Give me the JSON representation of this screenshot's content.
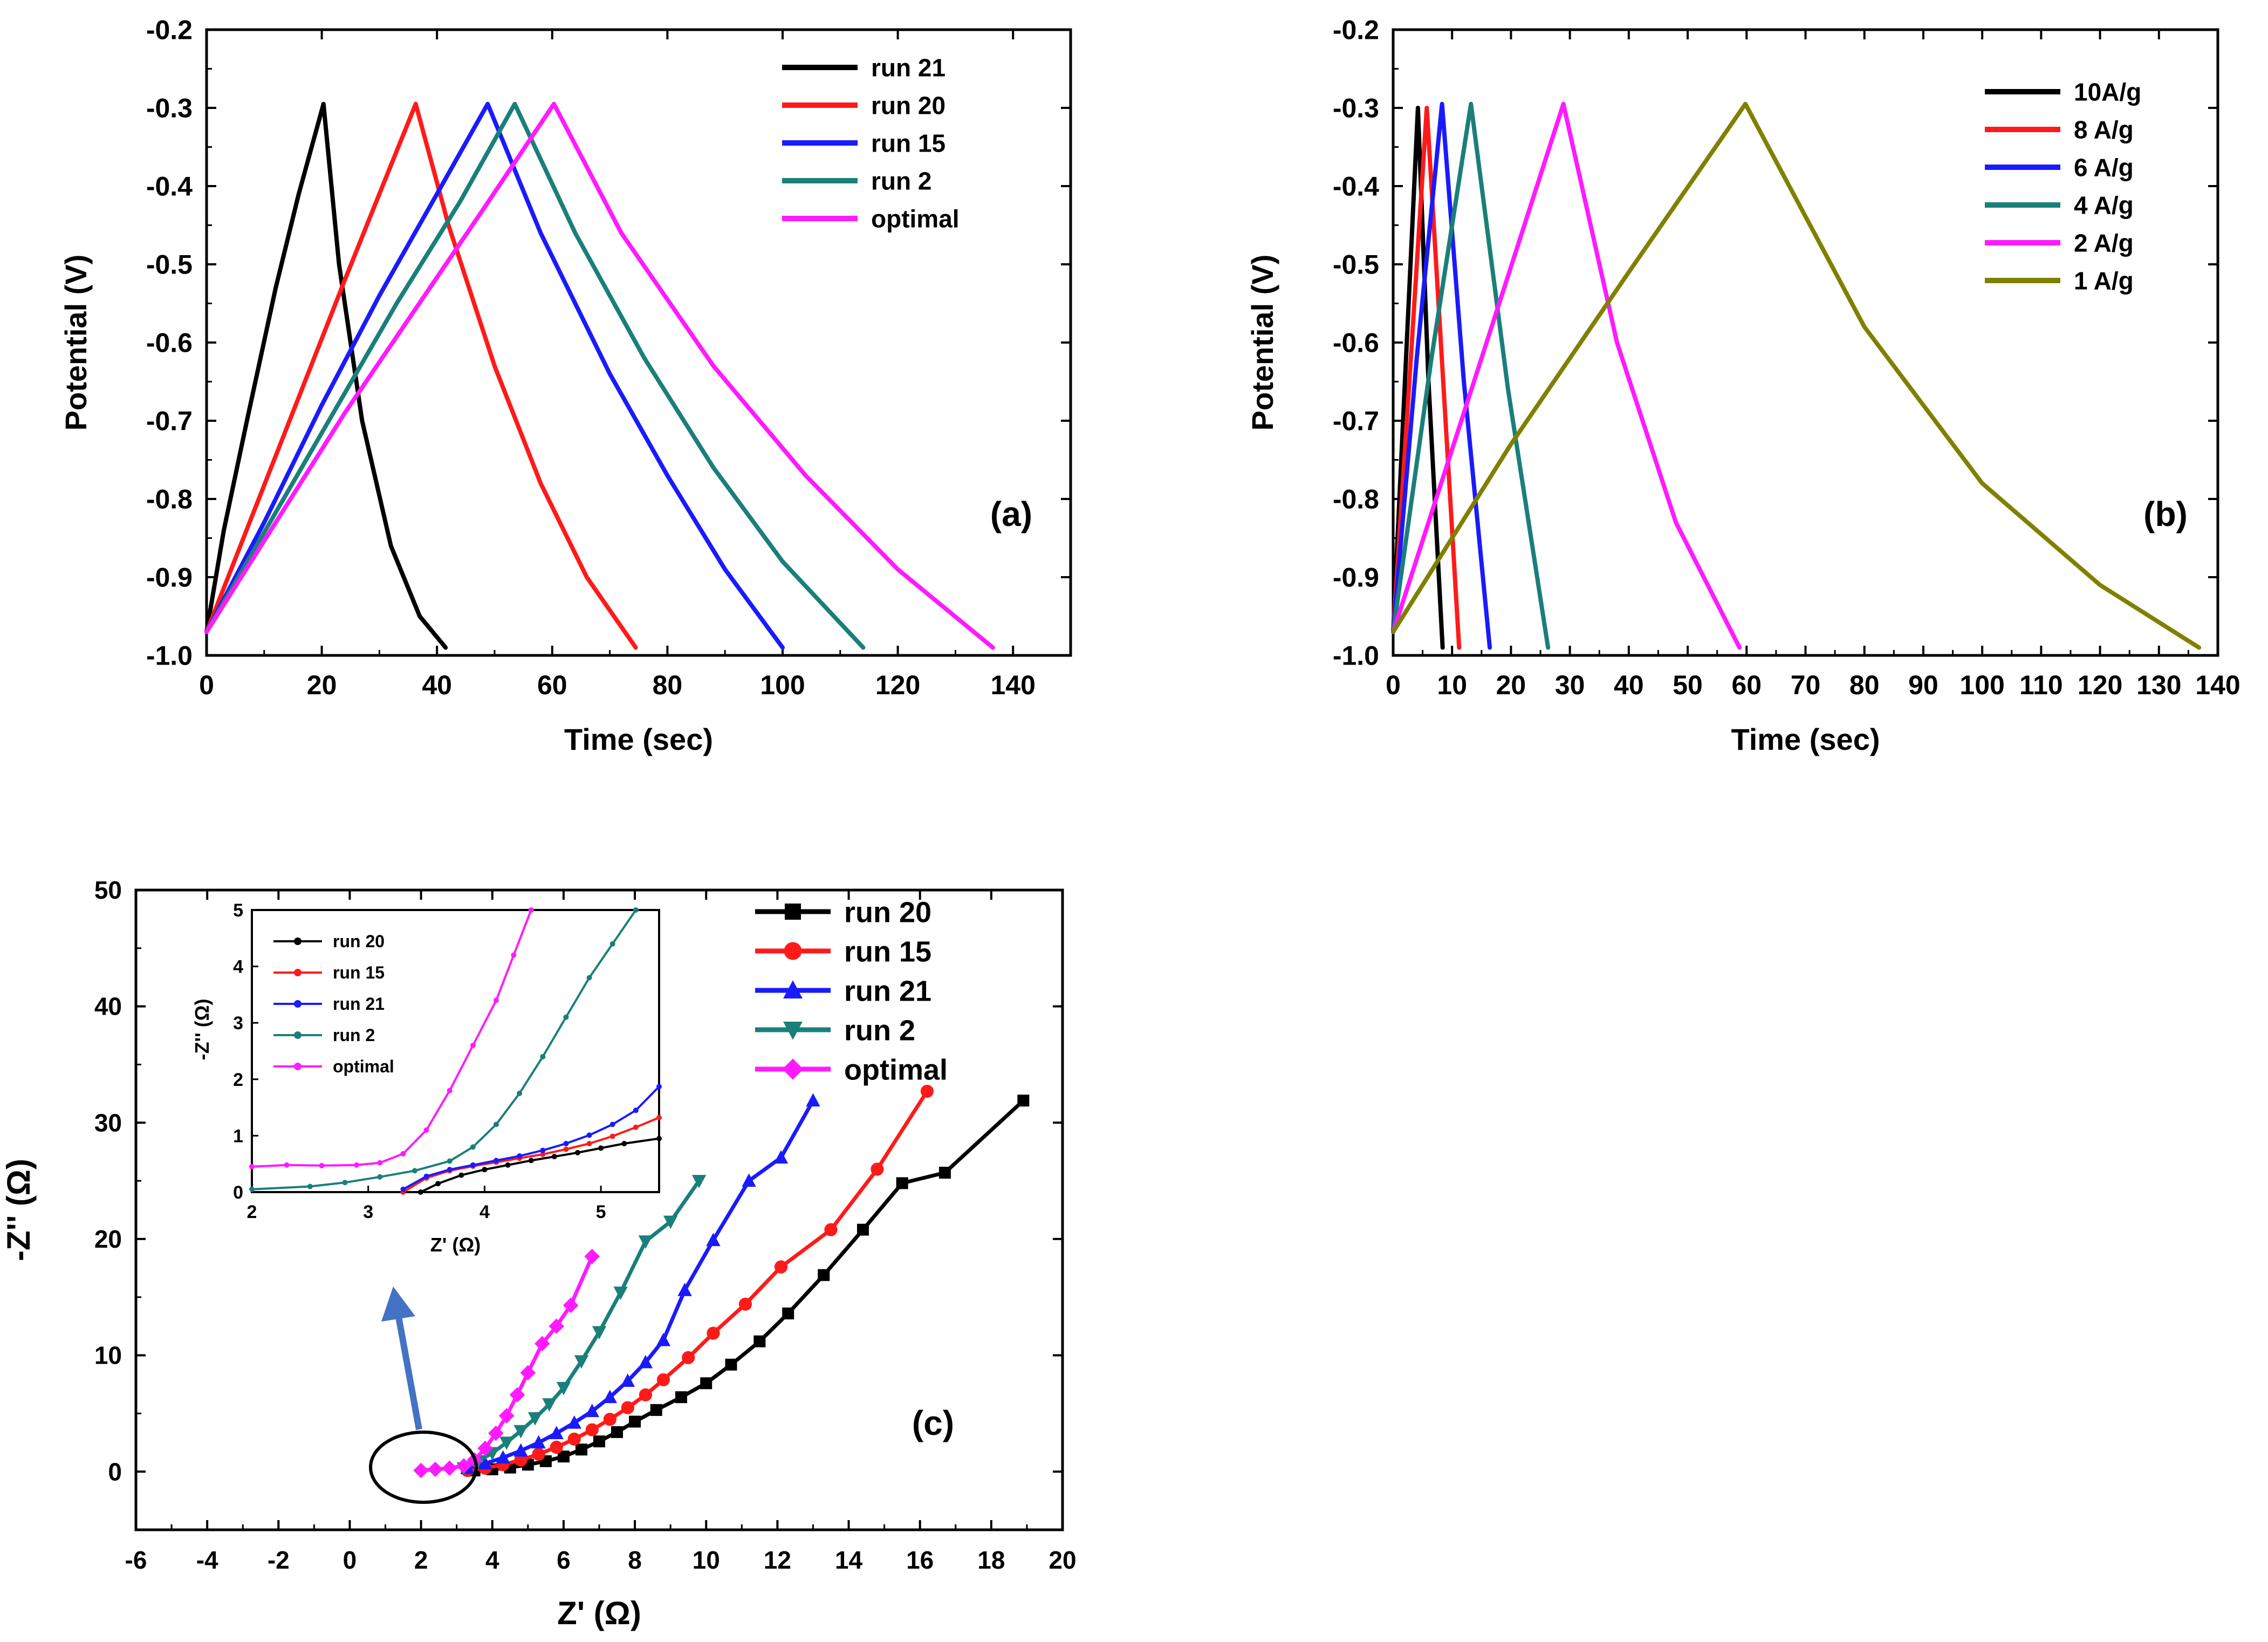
{
  "chart_data": [
    {
      "panel": "a",
      "type": "line",
      "annotation": "(a)",
      "xlabel": "Time (sec)",
      "ylabel": "Potential (V)",
      "xlim": [
        0,
        150
      ],
      "ylim": [
        -1.0,
        -0.2
      ],
      "xticks": [
        0,
        20,
        40,
        60,
        80,
        100,
        120,
        140
      ],
      "yticks": [
        -1.0,
        -0.9,
        -0.8,
        -0.7,
        -0.6,
        -0.5,
        -0.4,
        -0.3,
        -0.2
      ],
      "xtick_labels": [
        "0",
        "20",
        "40",
        "60",
        "80",
        "100",
        "120",
        "140"
      ],
      "ytick_labels": [
        "-1.0",
        "-0.9",
        "-0.8",
        "-0.7",
        "-0.6",
        "-0.5",
        "-0.4",
        "-0.3",
        "-0.2"
      ],
      "legend_position": "top-right",
      "series": [
        {
          "name": "run 21",
          "color": "#000000",
          "x": [
            0,
            3,
            7,
            12,
            16,
            20.3,
            23,
            27,
            32,
            37,
            41.5
          ],
          "y": [
            -0.97,
            -0.84,
            -0.7,
            -0.53,
            -0.41,
            -0.295,
            -0.5,
            -0.7,
            -0.86,
            -0.95,
            -0.99
          ]
        },
        {
          "name": "run 20",
          "color": "#ff1a1a",
          "x": [
            0,
            8,
            16,
            24,
            30,
            36.3,
            42,
            50,
            58,
            66,
            74.5
          ],
          "y": [
            -0.97,
            -0.82,
            -0.67,
            -0.52,
            -0.41,
            -0.295,
            -0.45,
            -0.63,
            -0.78,
            -0.9,
            -0.99
          ]
        },
        {
          "name": "run 15",
          "color": "#1a1aff",
          "x": [
            0,
            10,
            20,
            30,
            40,
            48.8,
            58,
            70,
            80,
            90,
            100
          ],
          "y": [
            -0.97,
            -0.83,
            -0.68,
            -0.54,
            -0.41,
            -0.295,
            -0.46,
            -0.64,
            -0.77,
            -0.89,
            -0.99
          ]
        },
        {
          "name": "run 2",
          "color": "#1a7f7a",
          "x": [
            0,
            11,
            22,
            33,
            44,
            53.5,
            64,
            76,
            88,
            100,
            114
          ],
          "y": [
            -0.97,
            -0.83,
            -0.69,
            -0.55,
            -0.42,
            -0.295,
            -0.46,
            -0.62,
            -0.76,
            -0.88,
            -0.99
          ]
        },
        {
          "name": "optimal",
          "color": "#ff1aff",
          "x": [
            0,
            12,
            24,
            36,
            48,
            60.3,
            72,
            88,
            104,
            120,
            136.5
          ],
          "y": [
            -0.97,
            -0.83,
            -0.69,
            -0.56,
            -0.43,
            -0.295,
            -0.46,
            -0.63,
            -0.77,
            -0.89,
            -0.99
          ]
        }
      ]
    },
    {
      "panel": "b",
      "type": "line",
      "annotation": "(b)",
      "xlabel": "Time (sec)",
      "ylabel": "Potential (V)",
      "xlim": [
        0,
        140
      ],
      "ylim": [
        -1.0,
        -0.2
      ],
      "xticks": [
        0,
        10,
        20,
        30,
        40,
        50,
        60,
        70,
        80,
        90,
        100,
        110,
        120,
        130,
        140
      ],
      "yticks": [
        -1.0,
        -0.9,
        -0.8,
        -0.7,
        -0.6,
        -0.5,
        -0.4,
        -0.3,
        -0.2
      ],
      "xtick_labels": [
        "0",
        "10",
        "20",
        "30",
        "40",
        "50",
        "60",
        "70",
        "80",
        "90",
        "100",
        "110",
        "120",
        "130",
        "140"
      ],
      "ytick_labels": [
        "-1.0",
        "-0.9",
        "-0.8",
        "-0.7",
        "-0.6",
        "-0.5",
        "-0.4",
        "-0.3",
        "-0.2"
      ],
      "legend_position": "top-right",
      "series": [
        {
          "name": "10A/g",
          "color": "#000000",
          "x": [
            0,
            2,
            4.2,
            6,
            8.4
          ],
          "y": [
            -0.97,
            -0.65,
            -0.3,
            -0.65,
            -0.99
          ]
        },
        {
          "name": "8 A/g",
          "color": "#ff1a1a",
          "x": [
            0,
            3,
            5.7,
            8.5,
            11.2
          ],
          "y": [
            -0.97,
            -0.62,
            -0.3,
            -0.65,
            -0.99
          ]
        },
        {
          "name": "6 A/g",
          "color": "#1a1aff",
          "x": [
            0,
            4,
            8.3,
            12,
            16.4
          ],
          "y": [
            -0.97,
            -0.62,
            -0.295,
            -0.65,
            -0.99
          ]
        },
        {
          "name": "4 A/g",
          "color": "#1a7f7a",
          "x": [
            0,
            6.5,
            13.2,
            19.5,
            26.3
          ],
          "y": [
            -0.97,
            -0.62,
            -0.295,
            -0.66,
            -0.99
          ]
        },
        {
          "name": "2 A/g",
          "color": "#ff1aff",
          "x": [
            0,
            9,
            18,
            28.9,
            38,
            48,
            58.8
          ],
          "y": [
            -0.97,
            -0.76,
            -0.55,
            -0.295,
            -0.6,
            -0.83,
            -0.99
          ]
        },
        {
          "name": "1 A/g",
          "color": "#808000",
          "x": [
            0,
            20,
            40,
            59.8,
            80,
            100,
            120,
            136.8
          ],
          "y": [
            -0.97,
            -0.73,
            -0.51,
            -0.295,
            -0.58,
            -0.78,
            -0.91,
            -0.99
          ]
        }
      ]
    },
    {
      "panel": "c",
      "type": "scatter",
      "annotation": "(c)",
      "xlabel": "Z' (Ω)",
      "ylabel": "-Z'' (Ω)",
      "xlim": [
        -6,
        20
      ],
      "ylim": [
        -5,
        50
      ],
      "xticks": [
        -6,
        -4,
        -2,
        0,
        2,
        4,
        6,
        8,
        10,
        12,
        14,
        16,
        18,
        20
      ],
      "yticks": [
        0,
        10,
        20,
        30,
        40,
        50
      ],
      "xtick_labels": [
        "-6",
        "-4",
        "-2",
        "0",
        "2",
        "4",
        "6",
        "8",
        "10",
        "12",
        "14",
        "16",
        "18",
        "20"
      ],
      "ytick_labels": [
        "0",
        "10",
        "20",
        "30",
        "40",
        "50"
      ],
      "legend_position": "top-right",
      "series": [
        {
          "name": "run 20",
          "color": "#000000",
          "marker": "square",
          "x": [
            3.5,
            4.0,
            4.5,
            5.0,
            5.5,
            6.0,
            6.5,
            7.0,
            7.5,
            8.0,
            8.6,
            9.3,
            10.0,
            10.7,
            11.5,
            12.3,
            13.3,
            14.4,
            15.5,
            16.7,
            18.9
          ],
          "y": [
            0.1,
            0.2,
            0.35,
            0.6,
            0.9,
            1.3,
            1.9,
            2.6,
            3.4,
            4.3,
            5.3,
            6.4,
            7.6,
            9.2,
            11.2,
            13.6,
            16.9,
            20.8,
            24.8,
            25.7,
            31.9
          ]
        },
        {
          "name": "run 15",
          "color": "#ff1a1a",
          "marker": "circle",
          "x": [
            3.3,
            3.8,
            4.3,
            4.8,
            5.3,
            5.8,
            6.3,
            6.8,
            7.3,
            7.8,
            8.3,
            8.8,
            9.5,
            10.2,
            11.1,
            12.1,
            13.5,
            14.8,
            16.2
          ],
          "y": [
            0.1,
            0.3,
            0.6,
            1.0,
            1.5,
            2.1,
            2.8,
            3.6,
            4.5,
            5.5,
            6.6,
            7.9,
            9.8,
            11.9,
            14.4,
            17.6,
            20.8,
            26.0,
            32.7
          ]
        },
        {
          "name": "run 21",
          "color": "#1a1aff",
          "marker": "triangle-up",
          "x": [
            3.3,
            3.8,
            4.3,
            4.8,
            5.3,
            5.8,
            6.3,
            6.8,
            7.3,
            7.8,
            8.3,
            8.8,
            9.4,
            10.2,
            11.2,
            12.1,
            13.0
          ],
          "y": [
            0.3,
            0.7,
            1.2,
            1.8,
            2.5,
            3.3,
            4.2,
            5.2,
            6.4,
            7.8,
            9.4,
            11.3,
            15.6,
            19.9,
            25.0,
            27.0,
            31.9
          ]
        },
        {
          "name": "run 2",
          "color": "#1a7f7a",
          "marker": "triangle-down",
          "x": [
            3.2,
            3.6,
            4.0,
            4.4,
            4.8,
            5.2,
            5.6,
            6.0,
            6.5,
            7.0,
            7.6,
            8.3,
            9.0,
            9.8
          ],
          "y": [
            0.3,
            0.9,
            1.6,
            2.5,
            3.5,
            4.6,
            5.8,
            7.2,
            9.5,
            12.0,
            15.4,
            19.8,
            21.5,
            25.0
          ]
        },
        {
          "name": "optimal",
          "color": "#ff1aff",
          "marker": "diamond",
          "x": [
            2.0,
            2.4,
            2.8,
            3.2,
            3.5,
            3.8,
            4.1,
            4.4,
            4.7,
            5.0,
            5.4,
            5.8,
            6.2,
            6.8
          ],
          "y": [
            0.1,
            0.2,
            0.3,
            0.5,
            1.0,
            2.0,
            3.3,
            4.8,
            6.6,
            8.5,
            11.0,
            12.5,
            14.3,
            18.5
          ]
        }
      ],
      "inset": {
        "type": "line",
        "xlabel": "Z' (Ω)",
        "ylabel": "-Z'' (Ω)",
        "xlim": [
          2,
          5.5
        ],
        "ylim": [
          0,
          5
        ],
        "xticks": [
          2,
          3,
          4,
          5
        ],
        "yticks": [
          0,
          1,
          2,
          3,
          4,
          5
        ],
        "xtick_labels": [
          "2",
          "3",
          "4",
          "5"
        ],
        "ytick_labels": [
          "0",
          "1",
          "2",
          "3",
          "4",
          "5"
        ],
        "legend_position": "top-left",
        "series": [
          {
            "name": "run 20",
            "color": "#000000",
            "x": [
              3.45,
              3.6,
              3.8,
              4.0,
              4.2,
              4.4,
              4.6,
              4.8,
              5.0,
              5.2,
              5.5
            ],
            "y": [
              0.0,
              0.15,
              0.3,
              0.4,
              0.48,
              0.56,
              0.63,
              0.7,
              0.78,
              0.86,
              0.95
            ]
          },
          {
            "name": "run 15",
            "color": "#ff1a1a",
            "x": [
              3.3,
              3.5,
              3.7,
              3.9,
              4.1,
              4.3,
              4.5,
              4.7,
              4.9,
              5.1,
              5.3,
              5.5
            ],
            "y": [
              0.0,
              0.25,
              0.38,
              0.46,
              0.53,
              0.6,
              0.67,
              0.76,
              0.86,
              0.99,
              1.15,
              1.32
            ]
          },
          {
            "name": "run 21",
            "color": "#1a1aff",
            "x": [
              3.3,
              3.5,
              3.7,
              3.9,
              4.1,
              4.3,
              4.5,
              4.7,
              4.9,
              5.1,
              5.3,
              5.5
            ],
            "y": [
              0.05,
              0.28,
              0.4,
              0.48,
              0.56,
              0.64,
              0.74,
              0.86,
              1.01,
              1.2,
              1.45,
              1.87
            ]
          },
          {
            "name": "run 2",
            "color": "#1a7f7a",
            "x": [
              2.0,
              2.5,
              2.8,
              3.1,
              3.4,
              3.7,
              3.9,
              4.1,
              4.3,
              4.5,
              4.7,
              4.9,
              5.1,
              5.3
            ],
            "y": [
              0.05,
              0.1,
              0.17,
              0.27,
              0.38,
              0.55,
              0.8,
              1.2,
              1.75,
              2.4,
              3.1,
              3.8,
              4.4,
              5.0
            ]
          },
          {
            "name": "optimal",
            "color": "#ff1aff",
            "x": [
              2.0,
              2.3,
              2.6,
              2.9,
              3.1,
              3.3,
              3.5,
              3.7,
              3.9,
              4.1,
              4.25,
              4.4
            ],
            "y": [
              0.45,
              0.48,
              0.47,
              0.48,
              0.52,
              0.68,
              1.1,
              1.8,
              2.6,
              3.4,
              4.2,
              5.0
            ]
          }
        ]
      }
    }
  ]
}
